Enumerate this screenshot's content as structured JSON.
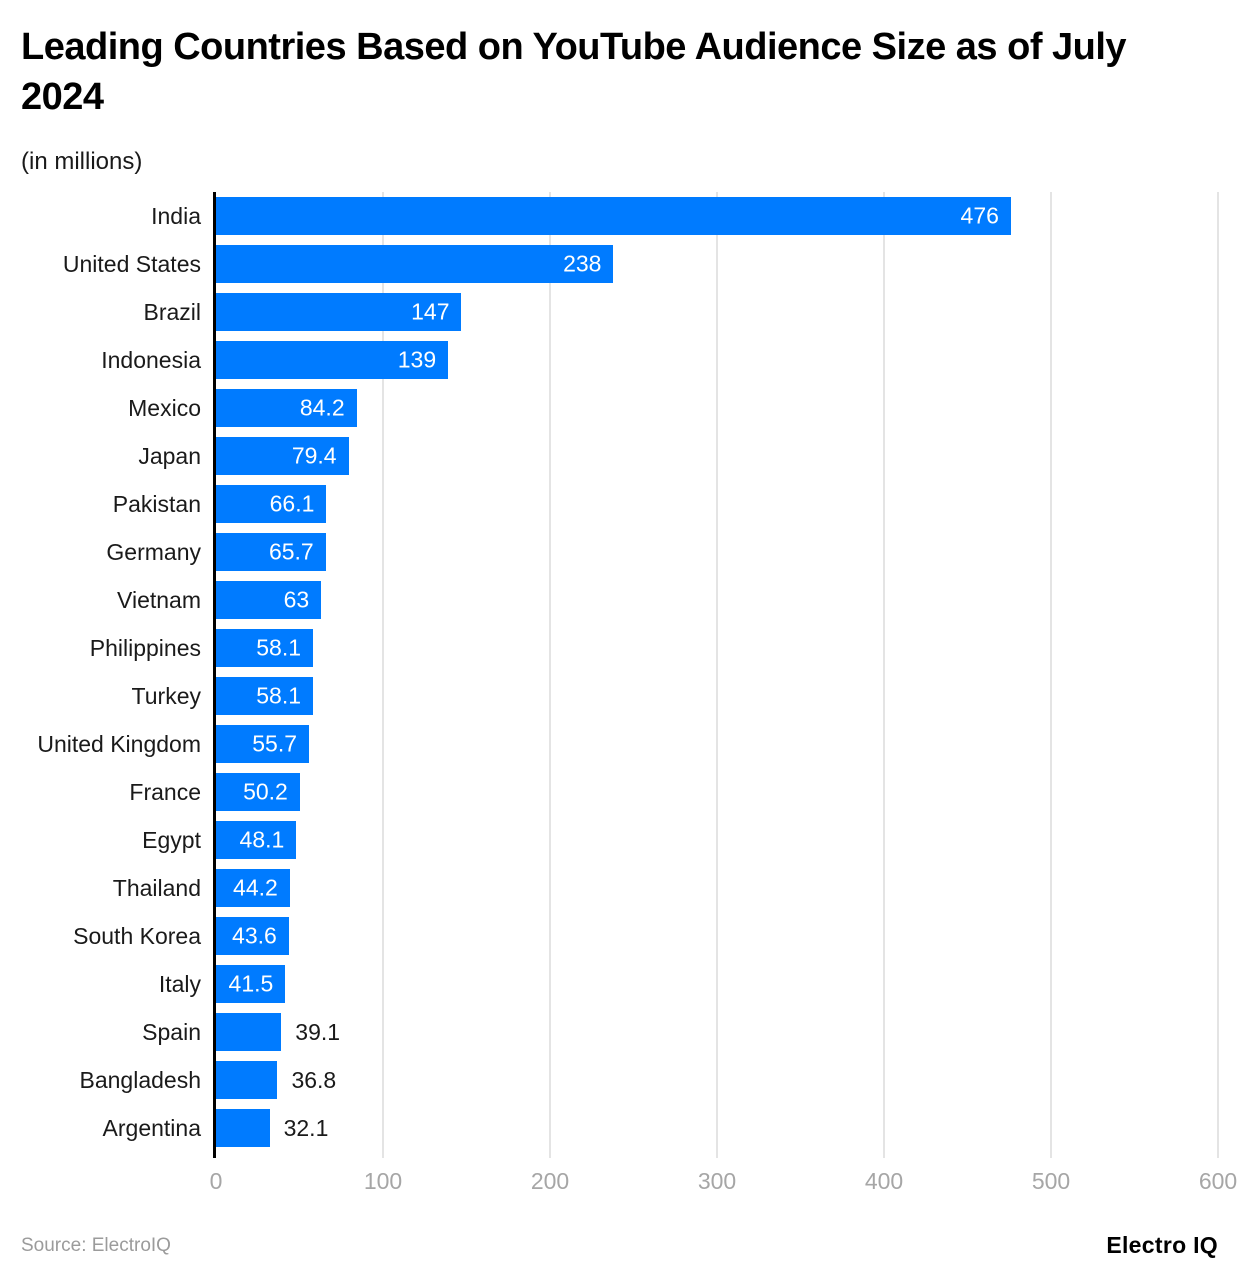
{
  "header": {
    "title": "Leading Countries Based on YouTube Audience Size as of July 2024",
    "subtitle": "(in millions)"
  },
  "chart_data": {
    "type": "bar",
    "orientation": "horizontal",
    "title": "Leading Countries Based on YouTube Audience Size as of July 2024",
    "subtitle": "(in millions)",
    "categories": [
      "India",
      "United States",
      "Brazil",
      "Indonesia",
      "Mexico",
      "Japan",
      "Pakistan",
      "Germany",
      "Vietnam",
      "Philippines",
      "Turkey",
      "United Kingdom",
      "France",
      "Egypt",
      "Thailand",
      "South Korea",
      "Italy",
      "Spain",
      "Bangladesh",
      "Argentina"
    ],
    "values": [
      476,
      238,
      147,
      139,
      84.2,
      79.4,
      66.1,
      65.7,
      63,
      58.1,
      58.1,
      55.7,
      50.2,
      48.1,
      44.2,
      43.6,
      41.5,
      39.1,
      36.8,
      32.1
    ],
    "value_labels": [
      "476",
      "238",
      "147",
      "139",
      "84.2",
      "79.4",
      "66.1",
      "65.7",
      "63",
      "58.1",
      "58.1",
      "55.7",
      "50.2",
      "48.1",
      "44.2",
      "43.6",
      "41.5",
      "39.1",
      "36.8",
      "32.1"
    ],
    "xlabel": "",
    "ylabel": "",
    "xlim": [
      0,
      600
    ],
    "xticks": [
      0,
      100,
      200,
      300,
      400,
      500,
      600
    ],
    "grid": "vertical-only",
    "legend": "none",
    "inside_label_min_value": 40
  },
  "colors": {
    "bar": "#007bff",
    "grid": "#e4e4e4",
    "axis": "#000000",
    "tick_label": "#a6a6a6",
    "value_inside": "#ffffff",
    "value_outside": "#1a1a1a"
  },
  "footer": {
    "source": "Source: ElectroIQ",
    "brand": "Electro IQ"
  }
}
